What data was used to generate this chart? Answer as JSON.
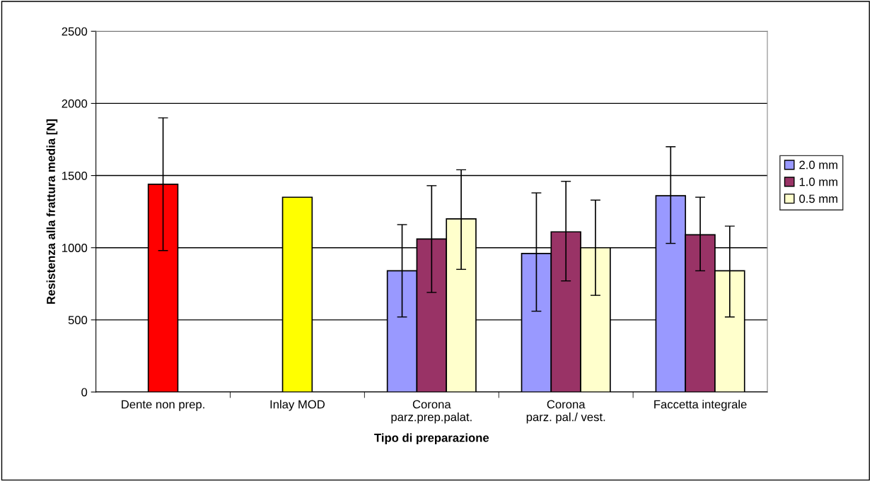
{
  "chart_data": {
    "type": "bar",
    "xlabel": "Tipo di preparazione",
    "ylabel": "Resistenza alla frattura media [N]",
    "categories": [
      "Dente non prep.",
      "Inlay MOD",
      "Corona\nparz.prep.palat.",
      "Corona\nparz. pal./ vest.",
      "Faccetta integrale"
    ],
    "series": [
      {
        "color": "#ff0000",
        "values": [
          1440,
          null,
          null,
          null,
          null
        ],
        "errors": [
          [
            980,
            1900
          ],
          null,
          null,
          null,
          null
        ]
      },
      {
        "color": "#ffff00",
        "values": [
          null,
          1350,
          null,
          null,
          null
        ]
      },
      {
        "name": "2.0 mm",
        "color": "#9999ff",
        "values": [
          null,
          null,
          840,
          960,
          1360
        ],
        "errors": [
          null,
          null,
          [
            520,
            1160
          ],
          [
            560,
            1380
          ],
          [
            1030,
            1700
          ]
        ]
      },
      {
        "name": "1.0 mm",
        "color": "#993366",
        "values": [
          null,
          null,
          1060,
          1110,
          1090
        ],
        "errors": [
          null,
          null,
          [
            690,
            1430
          ],
          [
            770,
            1460
          ],
          [
            840,
            1350
          ]
        ]
      },
      {
        "name": "0.5 mm",
        "color": "#ffffcc",
        "values": [
          null,
          null,
          1200,
          1000,
          840
        ],
        "errors": [
          null,
          null,
          [
            850,
            1540
          ],
          [
            670,
            1330
          ],
          [
            520,
            1150
          ]
        ]
      }
    ],
    "ylim": [
      0,
      2500
    ],
    "yticks": [
      0,
      500,
      1000,
      1500,
      2000,
      2500
    ],
    "grid": "y",
    "legend": "right"
  }
}
